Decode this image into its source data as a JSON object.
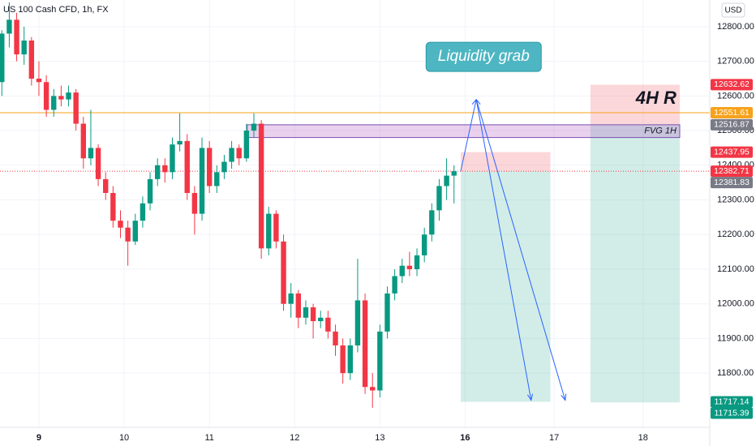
{
  "header": {
    "symbol": "US 100 Cash CFD, 1h, FX",
    "currency": "USD"
  },
  "chart_data": {
    "type": "candlestick",
    "x": [
      -10,
      -8,
      -6,
      -4,
      -2,
      0,
      2,
      4,
      6,
      8,
      10,
      12,
      14,
      16,
      18,
      20,
      22,
      24,
      26,
      28,
      30,
      32,
      34,
      36,
      38,
      40,
      42,
      44,
      46,
      48,
      50,
      52,
      54,
      56,
      58,
      60,
      62,
      64,
      66,
      68,
      70,
      72,
      74,
      76,
      78,
      80,
      82,
      84,
      86,
      88,
      90,
      92,
      94,
      96,
      98,
      100,
      102,
      104,
      106,
      108,
      110,
      112
    ],
    "ohlc": [
      [
        12640,
        12790,
        12600,
        12780
      ],
      [
        12780,
        12870,
        12740,
        12820
      ],
      [
        12820,
        12840,
        12700,
        12720
      ],
      [
        12720,
        12800,
        12690,
        12760
      ],
      [
        12760,
        12770,
        12630,
        12650
      ],
      [
        12650,
        12700,
        12600,
        12640
      ],
      [
        12640,
        12660,
        12540,
        12560
      ],
      [
        12560,
        12620,
        12540,
        12600
      ],
      [
        12600,
        12630,
        12570,
        12590
      ],
      [
        12590,
        12630,
        12570,
        12610
      ],
      [
        12610,
        12620,
        12500,
        12520
      ],
      [
        12520,
        12540,
        12390,
        12420
      ],
      [
        12420,
        12560,
        12400,
        12450
      ],
      [
        12450,
        12460,
        12340,
        12360
      ],
      [
        12360,
        12380,
        12300,
        12320
      ],
      [
        12320,
        12340,
        12220,
        12240
      ],
      [
        12240,
        12270,
        12190,
        12220
      ],
      [
        12220,
        12240,
        12110,
        12180
      ],
      [
        12180,
        12260,
        12170,
        12240
      ],
      [
        12240,
        12310,
        12220,
        12290
      ],
      [
        12290,
        12380,
        12270,
        12360
      ],
      [
        12360,
        12420,
        12340,
        12400
      ],
      [
        12400,
        12420,
        12350,
        12380
      ],
      [
        12380,
        12480,
        12360,
        12460
      ],
      [
        12460,
        12550,
        12440,
        12470
      ],
      [
        12470,
        12490,
        12300,
        12320
      ],
      [
        12320,
        12340,
        12200,
        12260
      ],
      [
        12260,
        12480,
        12240,
        12450
      ],
      [
        12450,
        12470,
        12320,
        12340
      ],
      [
        12340,
        12400,
        12320,
        12380
      ],
      [
        12380,
        12430,
        12360,
        12410
      ],
      [
        12410,
        12470,
        12390,
        12450
      ],
      [
        12450,
        12460,
        12400,
        12420
      ],
      [
        12420,
        12520,
        12410,
        12500
      ],
      [
        12500,
        12550,
        12480,
        12520
      ],
      [
        12520,
        12530,
        12130,
        12160
      ],
      [
        12160,
        12280,
        12140,
        12260
      ],
      [
        12260,
        12270,
        12160,
        12180
      ],
      [
        12180,
        12200,
        11980,
        12000
      ],
      [
        12000,
        12060,
        11960,
        12030
      ],
      [
        12030,
        12040,
        11930,
        11960
      ],
      [
        11960,
        12010,
        11940,
        11990
      ],
      [
        11990,
        12000,
        11900,
        11950
      ],
      [
        11950,
        11980,
        11930,
        11960
      ],
      [
        11960,
        11980,
        11900,
        11920
      ],
      [
        11920,
        11940,
        11850,
        11880
      ],
      [
        11880,
        11900,
        11770,
        11800
      ],
      [
        11800,
        11900,
        11780,
        11880
      ],
      [
        11880,
        12130,
        11860,
        12010
      ],
      [
        12010,
        12030,
        11740,
        11760
      ],
      [
        11760,
        11800,
        11700,
        11750
      ],
      [
        11750,
        11940,
        11730,
        11920
      ],
      [
        11920,
        12050,
        11900,
        12030
      ],
      [
        12030,
        12100,
        12010,
        12080
      ],
      [
        12080,
        12130,
        12060,
        12110
      ],
      [
        12110,
        12150,
        12080,
        12100
      ],
      [
        12100,
        12160,
        12080,
        12140
      ],
      [
        12140,
        12220,
        12120,
        12200
      ],
      [
        12200,
        12290,
        12180,
        12270
      ],
      [
        12270,
        12360,
        12240,
        12340
      ],
      [
        12340,
        12420,
        12300,
        12370
      ],
      [
        12370,
        12400,
        12290,
        12382.71
      ]
    ],
    "up_color": "#089981",
    "down_color": "#f23645",
    "xlim": [
      -10.5,
      181
    ],
    "xticks": [
      {
        "value": 0,
        "label": "9"
      },
      {
        "value": 23,
        "label": "10"
      },
      {
        "value": 46,
        "label": "11"
      },
      {
        "value": 69,
        "label": "12"
      },
      {
        "value": 92,
        "label": "13"
      },
      {
        "value": 115,
        "label": "16"
      },
      {
        "value": 139,
        "label": "17"
      },
      {
        "value": 163,
        "label": "18"
      }
    ],
    "ylim": [
      11695,
      12877
    ],
    "yticks": [
      {
        "value": 11800,
        "label": "11800.00"
      },
      {
        "value": 11900,
        "label": "11900.00"
      },
      {
        "value": 12000,
        "label": "12000.00"
      },
      {
        "value": 12100,
        "label": "12100.00"
      },
      {
        "value": 12200,
        "label": "12200.00"
      },
      {
        "value": 12300,
        "label": "12300.00"
      },
      {
        "value": 12400,
        "label": "12400.00"
      },
      {
        "value": 12500,
        "label": "12500.00"
      },
      {
        "value": 12600,
        "label": "12600.00"
      },
      {
        "value": 12700,
        "label": "12700.00"
      },
      {
        "value": 12800,
        "label": "12800.00"
      }
    ],
    "grid": true,
    "level_line": {
      "value": 12551.61,
      "color": "#f7a21b"
    },
    "current_price": {
      "value": 12382.71,
      "color": "#f23645"
    },
    "price_tags": [
      {
        "value": 12632.62,
        "color": "#f23645"
      },
      {
        "value": 12551.61,
        "color": "#f7a21b"
      },
      {
        "value": 12516.87,
        "color": "#787b86"
      },
      {
        "value": 12437.95,
        "color": "#f23645"
      },
      {
        "value": 12382.71,
        "color": "#f23645"
      },
      {
        "value": 12381.83,
        "color": "#787b86"
      },
      {
        "value": 11717.14,
        "color": "#089981"
      },
      {
        "value": 11715.39,
        "color": "#089981"
      }
    ],
    "fvg": {
      "label": "FVG 1H",
      "x": [
        56.2,
        172.9
      ],
      "top": 12516.87,
      "bottom": 12480
    },
    "positions": [
      {
        "x": [
          113.8,
          138
        ],
        "stop": 12437.95,
        "entry": 12382.71,
        "target": 11717.14
      },
      {
        "x": [
          148.8,
          172.9
        ],
        "stop": 12632.62,
        "entry": 12516.87,
        "target": 11715.39
      }
    ],
    "arrows": [
      [
        [
          113.8,
          12382.71
        ],
        [
          118,
          12590
        ],
        [
          132.8,
          11722
        ]
      ],
      [
        [
          118,
          12590
        ],
        [
          142,
          11722
        ]
      ]
    ],
    "annotations": [
      {
        "text": "Liquidity grab",
        "x": 120,
        "y": 12713
      },
      {
        "text": "4H R",
        "x": 172,
        "y": 12591
      }
    ]
  }
}
